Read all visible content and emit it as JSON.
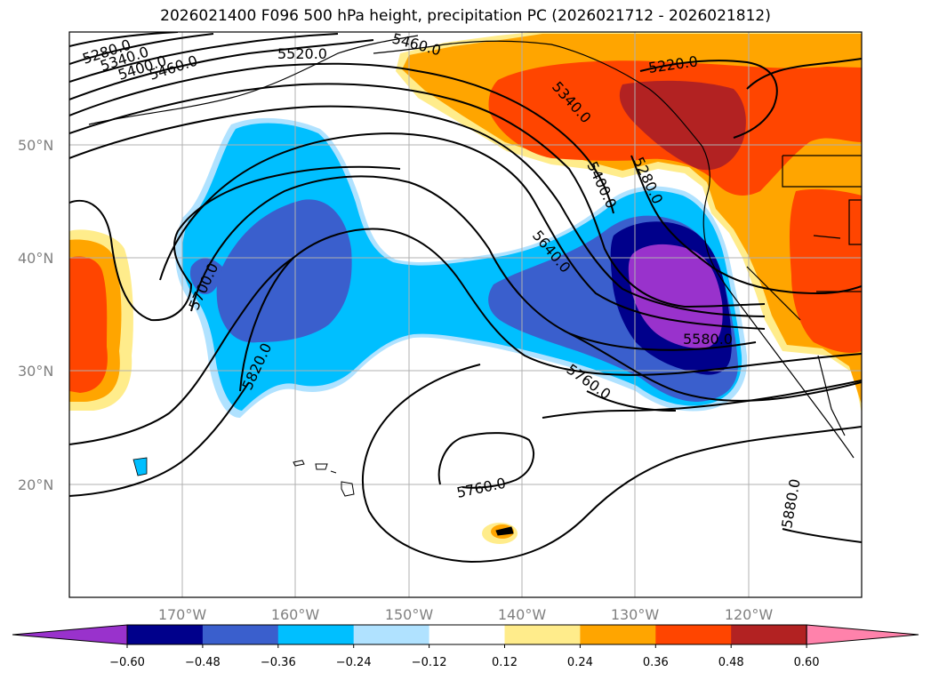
{
  "title": "2026021400 F096 500 hPa height, precipitation PC (2026021712 - 2026021812)",
  "lat_labels": [
    "50°N",
    "40°N",
    "30°N",
    "20°N"
  ],
  "lon_labels": [
    "170°W",
    "160°W",
    "150°W",
    "140°W",
    "130°W",
    "120°W"
  ],
  "colorbar": {
    "ticks": [
      "−0.60",
      "−0.48",
      "−0.36",
      "−0.24",
      "−0.12",
      "0.12",
      "0.24",
      "0.36",
      "0.48",
      "0.60"
    ],
    "colors": [
      "#9932cc",
      "#00008b",
      "#3a5fcd",
      "#00bfff",
      "#b0e2ff",
      "#ffffff",
      "#ffec8b",
      "#ffa500",
      "#ff4500",
      "#b22222",
      "#ff82ab"
    ]
  },
  "contour_labels": [
    "5280.0",
    "5340.0",
    "5400.0",
    "5460.0",
    "5520.0",
    "5460.0",
    "5220.0",
    "5340.0",
    "5400.0",
    "5280.0",
    "5640.0",
    "5700.0",
    "5820.0",
    "5580.0",
    "5760.0",
    "5760.0",
    "5880.0"
  ],
  "colors": {
    "purple": "#9932cc",
    "dark_blue": "#00008b",
    "blue": "#3a5fcd",
    "sky": "#00bfff",
    "light_blue": "#b0e2ff",
    "yellow": "#ffec8b",
    "orange": "#ffa500",
    "orange_red": "#ff4500",
    "firebrick": "#b22222"
  }
}
